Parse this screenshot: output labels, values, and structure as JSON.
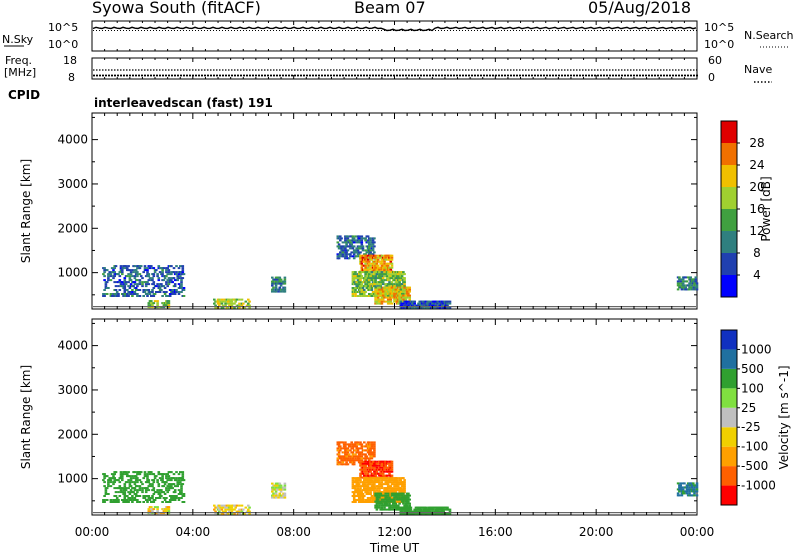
{
  "header": {
    "title": "Syowa South (fitACF)",
    "beam": "Beam 07",
    "date": "05/Aug/2018"
  },
  "top_panels": {
    "nsky_label": "N.Sky",
    "nsky_ticks": [
      "10^5",
      "10^0"
    ],
    "nsearch_label": "N.Search",
    "nsearch_ticks": [
      "10^5",
      "10^0"
    ],
    "freq_label_1": "Freq.",
    "freq_label_2": "[MHz]",
    "freq_ticks": [
      "18",
      "8"
    ],
    "nave_label": "Nave",
    "nave_ticks": [
      "60",
      "0"
    ],
    "cpid_label": "CPID",
    "cpid_text": "interleavedscan (fast) 191"
  },
  "axes": {
    "xlabel": "Time UT",
    "x_ticks": [
      "00:00",
      "04:00",
      "08:00",
      "12:00",
      "16:00",
      "20:00",
      "00:00"
    ],
    "ylabel": "Slant Range [km]",
    "y_ticks": [
      "1000",
      "2000",
      "3000",
      "4000"
    ]
  },
  "colors": {
    "power_scale": [
      "#0000ff",
      "#2040b0",
      "#2f7f7f",
      "#40a040",
      "#a0d030",
      "#f0c000",
      "#f07000",
      "#e00000"
    ],
    "velocity_scale": [
      "#ff0000",
      "#ff6000",
      "#ffa000",
      "#f0d000",
      "#c0c0c0",
      "#80e040",
      "#30a030",
      "#2070a0",
      "#1030c0"
    ]
  },
  "chart_data": [
    {
      "type": "heatmap",
      "panel": "power",
      "xlabel": "Time UT",
      "ylabel": "Slant Range [km]",
      "xlim_hours": [
        0,
        24
      ],
      "ylim_km": [
        180,
        4600
      ],
      "colorbar_label": "Power [dB]",
      "colorbar_ticks": [
        "4",
        "8",
        "12",
        "16",
        "20",
        "24",
        "28"
      ],
      "colorbar_range": [
        0,
        32
      ],
      "patches": [
        {
          "t0": 0.4,
          "t1": 3.6,
          "r0": 450,
          "r1": 1150,
          "level": 8,
          "density": 0.35
        },
        {
          "t0": 2.2,
          "t1": 3.0,
          "r0": 200,
          "r1": 350,
          "level": 16,
          "density": 0.5
        },
        {
          "t0": 4.8,
          "t1": 6.2,
          "r0": 190,
          "r1": 400,
          "level": 18,
          "density": 0.45
        },
        {
          "t0": 7.1,
          "t1": 7.6,
          "r0": 550,
          "r1": 900,
          "level": 10,
          "density": 0.6
        },
        {
          "t0": 9.7,
          "t1": 11.2,
          "r0": 1300,
          "r1": 1800,
          "level": 8,
          "density": 0.55
        },
        {
          "t0": 10.6,
          "t1": 11.9,
          "r0": 1000,
          "r1": 1400,
          "level": 24,
          "density": 0.75
        },
        {
          "t0": 10.3,
          "t1": 12.4,
          "r0": 450,
          "r1": 1000,
          "level": 16,
          "density": 0.7
        },
        {
          "t0": 11.2,
          "t1": 12.6,
          "r0": 280,
          "r1": 650,
          "level": 22,
          "density": 0.75
        },
        {
          "t0": 12.2,
          "t1": 14.2,
          "r0": 190,
          "r1": 340,
          "level": 6,
          "density": 0.75
        },
        {
          "t0": 23.2,
          "t1": 24.0,
          "r0": 600,
          "r1": 900,
          "level": 10,
          "density": 0.65
        }
      ]
    },
    {
      "type": "heatmap",
      "panel": "velocity",
      "xlabel": "Time UT",
      "ylabel": "Slant Range [km]",
      "xlim_hours": [
        0,
        24
      ],
      "ylim_km": [
        180,
        4600
      ],
      "colorbar_label": "Velocity [m s^-1]",
      "colorbar_ticks": [
        "1000",
        "500",
        "100",
        "25",
        "-25",
        "-100",
        "-500",
        "-1000"
      ],
      "patches": [
        {
          "t0": 0.4,
          "t1": 3.6,
          "r0": 450,
          "r1": 1150,
          "vel": 200,
          "density": 0.35
        },
        {
          "t0": 2.2,
          "t1": 3.0,
          "r0": 200,
          "r1": 350,
          "vel": -50,
          "density": 0.5
        },
        {
          "t0": 4.8,
          "t1": 6.2,
          "r0": 190,
          "r1": 400,
          "vel": -50,
          "density": 0.45
        },
        {
          "t0": 7.1,
          "t1": 7.6,
          "r0": 550,
          "r1": 900,
          "vel": 0,
          "density": 0.6
        },
        {
          "t0": 9.7,
          "t1": 11.2,
          "r0": 1300,
          "r1": 1800,
          "vel": -700,
          "density": 0.6
        },
        {
          "t0": 10.6,
          "t1": 11.9,
          "r0": 1000,
          "r1": 1400,
          "vel": -900,
          "density": 0.75
        },
        {
          "t0": 10.3,
          "t1": 12.4,
          "r0": 450,
          "r1": 1000,
          "vel": -200,
          "density": 0.7
        },
        {
          "t0": 11.2,
          "t1": 12.6,
          "r0": 280,
          "r1": 650,
          "vel": 300,
          "density": 0.75
        },
        {
          "t0": 12.2,
          "t1": 14.2,
          "r0": 190,
          "r1": 340,
          "vel": 200,
          "density": 0.75
        },
        {
          "t0": 23.2,
          "t1": 24.0,
          "r0": 600,
          "r1": 900,
          "vel": 600,
          "density": 0.65
        }
      ]
    }
  ]
}
